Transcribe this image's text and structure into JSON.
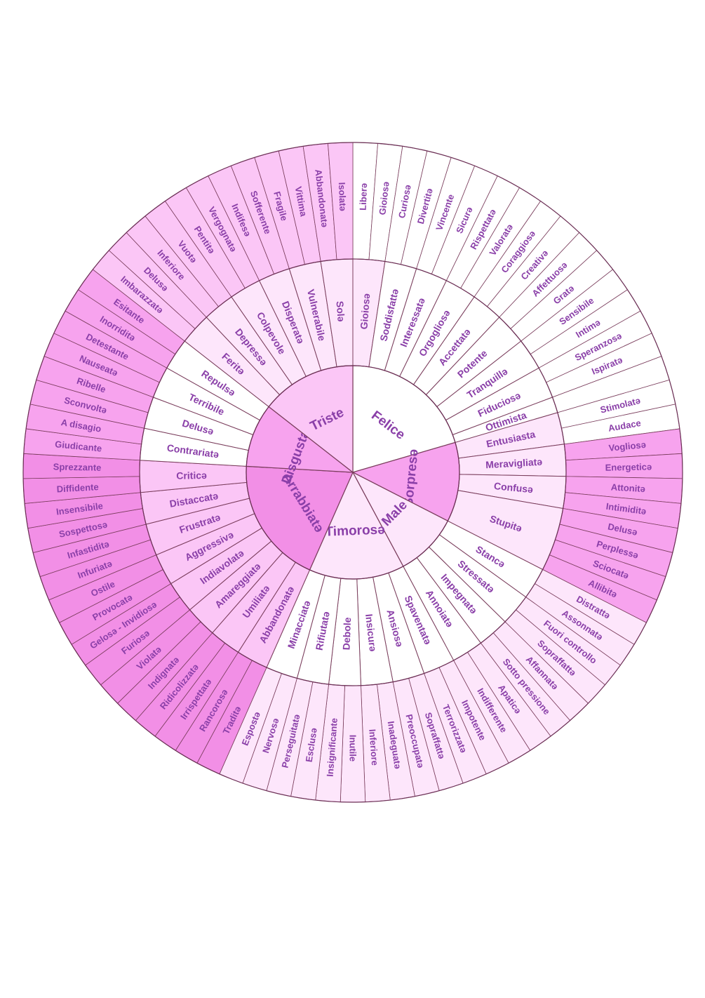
{
  "colors": {
    "white": "#ffffff",
    "pale": "#fde6fb",
    "light": "#fbc6f6",
    "mid": "#f7a3ee",
    "strong": "#f28fe6",
    "text": "#8a3fa8",
    "line": "#7a3d5c"
  },
  "emotions": [
    {
      "label": "Felice",
      "color": "white",
      "subs": [
        {
          "label": "Gioiosə",
          "color": "pale",
          "leaves": [
            {
              "label": "Liberə",
              "color": "white"
            },
            {
              "label": "Gioiosə",
              "color": "white"
            }
          ]
        },
        {
          "label": "Soddisfattə",
          "color": "white",
          "leaves": [
            {
              "label": "Curiosə",
              "color": "white"
            },
            {
              "label": "Divertitə",
              "color": "white"
            }
          ]
        },
        {
          "label": "Interessatə",
          "color": "white",
          "leaves": [
            {
              "label": "Vincente",
              "color": "white"
            },
            {
              "label": "Sicurə",
              "color": "white"
            }
          ]
        },
        {
          "label": "Orgogliosə",
          "color": "white",
          "leaves": [
            {
              "label": "Rispettatə",
              "color": "white"
            },
            {
              "label": "Valoratə",
              "color": "white"
            }
          ]
        },
        {
          "label": "Accettatə",
          "color": "white",
          "leaves": [
            {
              "label": "Coraggiosə",
              "color": "white"
            },
            {
              "label": "Creativə",
              "color": "white"
            }
          ]
        },
        {
          "label": "Potente",
          "color": "white",
          "leaves": [
            {
              "label": "Affettuosə",
              "color": "white"
            },
            {
              "label": "Gratə",
              "color": "white"
            }
          ]
        },
        {
          "label": "Tranquillə",
          "color": "white",
          "leaves": [
            {
              "label": "Sensibile",
              "color": "white"
            },
            {
              "label": "Intimə",
              "color": "white"
            }
          ]
        },
        {
          "label": "Fiduciosə",
          "color": "white",
          "leaves": [
            {
              "label": "Speranzosə",
              "color": "white"
            },
            {
              "label": "Ispiratə",
              "color": "white"
            }
          ]
        },
        {
          "label": "Ottimista",
          "color": "white",
          "leaves": []
        }
      ]
    },
    {
      "label": "Sorpresə",
      "color": "mid",
      "subs": [
        {
          "label": "Entusiasta",
          "color": "pale",
          "leaves": [
            {
              "label": "Stimolatə",
              "color": "white"
            },
            {
              "label": "Audace",
              "color": "white"
            }
          ]
        },
        {
          "label": "Meravigliatə",
          "color": "pale",
          "leaves": [
            {
              "label": "Vogliosə",
              "color": "mid"
            },
            {
              "label": "Energeticə",
              "color": "mid"
            }
          ]
        },
        {
          "label": "Confusə",
          "color": "pale",
          "leaves": [
            {
              "label": "Attonitə",
              "color": "mid"
            },
            {
              "label": "Intimiditə",
              "color": "mid"
            }
          ]
        },
        {
          "label": "Stupitə",
          "color": "pale",
          "leaves": [
            {
              "label": "Delusə",
              "color": "mid"
            },
            {
              "label": "Perplessə",
              "color": "mid"
            },
            {
              "label": "Sciocatə",
              "color": "mid"
            },
            {
              "label": "Allibitə",
              "color": "mid"
            }
          ]
        }
      ]
    },
    {
      "label": "Male",
      "color": "pale",
      "subs": [
        {
          "label": "Stancə",
          "color": "white",
          "leaves": [
            {
              "label": "Distrattə",
              "color": "pale"
            },
            {
              "label": "Assonnatə",
              "color": "pale"
            }
          ]
        },
        {
          "label": "Stressatə",
          "color": "white",
          "leaves": [
            {
              "label": "Fuori controllo",
              "color": "pale"
            },
            {
              "label": "Sopraffattə",
              "color": "pale"
            }
          ]
        },
        {
          "label": "Impegnatə",
          "color": "white",
          "leaves": [
            {
              "label": "Affannatə",
              "color": "pale"
            },
            {
              "label": "Sotto pressione",
              "color": "pale"
            }
          ]
        },
        {
          "label": "Annoiatə",
          "color": "white",
          "leaves": [
            {
              "label": "Apaticə",
              "color": "pale"
            },
            {
              "label": "Indifferente",
              "color": "pale"
            }
          ]
        }
      ]
    },
    {
      "label": "Timorosə",
      "color": "pale",
      "subs": [
        {
          "label": "Spaventatə",
          "color": "white",
          "leaves": [
            {
              "label": "Impotente",
              "color": "pale"
            },
            {
              "label": "Terrorizzatə",
              "color": "pale"
            }
          ]
        },
        {
          "label": "Ansiosə",
          "color": "white",
          "leaves": [
            {
              "label": "Sopraffattə",
              "color": "pale"
            },
            {
              "label": "Preoccupatə",
              "color": "pale"
            }
          ]
        },
        {
          "label": "Insicurə",
          "color": "white",
          "leaves": [
            {
              "label": "Inadeguatə",
              "color": "pale"
            },
            {
              "label": "Inferiore",
              "color": "pale"
            }
          ]
        },
        {
          "label": "Debole",
          "color": "white",
          "leaves": [
            {
              "label": "Inutile",
              "color": "pale"
            },
            {
              "label": "Insignificante",
              "color": "pale"
            }
          ]
        },
        {
          "label": "Rifiutatə",
          "color": "white",
          "leaves": [
            {
              "label": "Esclusə",
              "color": "pale"
            },
            {
              "label": "Perseguitatə",
              "color": "pale"
            }
          ]
        },
        {
          "label": "Minacciatə",
          "color": "white",
          "leaves": [
            {
              "label": "Nervosə",
              "color": "pale"
            },
            {
              "label": "Espostə",
              "color": "pale"
            }
          ]
        }
      ]
    },
    {
      "label": "Arrabbiatə",
      "color": "strong",
      "subs": [
        {
          "label": "Abbandonatə",
          "color": "light",
          "leaves": [
            {
              "label": "Traditə",
              "color": "strong"
            },
            {
              "label": "Rancorosə",
              "color": "strong"
            }
          ]
        },
        {
          "label": "Umiliatə",
          "color": "light",
          "leaves": [
            {
              "label": "Irrispettatə",
              "color": "strong"
            },
            {
              "label": "Ridicolizzatə",
              "color": "strong"
            }
          ]
        },
        {
          "label": "Amareggiatə",
          "color": "light",
          "leaves": [
            {
              "label": "Indignatə",
              "color": "strong"
            },
            {
              "label": "Violatə",
              "color": "strong"
            }
          ]
        },
        {
          "label": "Indiavolatə",
          "color": "light",
          "leaves": [
            {
              "label": "Furiosə",
              "color": "strong"
            },
            {
              "label": "Gelosə - Invidiosə",
              "color": "strong"
            }
          ]
        },
        {
          "label": "Aggressivə",
          "color": "light",
          "leaves": [
            {
              "label": "Provocatə",
              "color": "strong"
            },
            {
              "label": "Ostile",
              "color": "strong"
            }
          ]
        },
        {
          "label": "Frustratə",
          "color": "light",
          "leaves": [
            {
              "label": "Infuriatə",
              "color": "strong"
            },
            {
              "label": "Infastiditə",
              "color": "strong"
            }
          ]
        },
        {
          "label": "Distaccatə",
          "color": "light",
          "leaves": [
            {
              "label": "Sospettosə",
              "color": "strong"
            },
            {
              "label": "Insensibile",
              "color": "strong"
            }
          ]
        },
        {
          "label": "Criticə",
          "color": "light",
          "leaves": [
            {
              "label": "Diffidente",
              "color": "strong"
            },
            {
              "label": "Sprezzante",
              "color": "strong"
            }
          ]
        }
      ]
    },
    {
      "label": "Disgustatə",
      "color": "mid",
      "subs": [
        {
          "label": "Contrariatə",
          "color": "white",
          "leaves": [
            {
              "label": "Giudicante",
              "color": "mid"
            },
            {
              "label": "A disagio",
              "color": "mid"
            }
          ]
        },
        {
          "label": "Delusə",
          "color": "white",
          "leaves": [
            {
              "label": "Sconvoltə",
              "color": "mid"
            },
            {
              "label": "Ribelle",
              "color": "mid"
            }
          ]
        },
        {
          "label": "Terribile",
          "color": "white",
          "leaves": [
            {
              "label": "Nauseatə",
              "color": "mid"
            },
            {
              "label": "Detestante",
              "color": "mid"
            }
          ]
        },
        {
          "label": "Repulsə",
          "color": "white",
          "leaves": [
            {
              "label": "Inorriditə",
              "color": "mid"
            },
            {
              "label": "Esitante",
              "color": "mid"
            }
          ]
        }
      ]
    },
    {
      "label": "Triste",
      "color": "light",
      "subs": [
        {
          "label": "Feritə",
          "color": "pale",
          "leaves": [
            {
              "label": "Imbarazzatə",
              "color": "light"
            },
            {
              "label": "Delusə",
              "color": "light"
            }
          ]
        },
        {
          "label": "Depressə",
          "color": "pale",
          "leaves": [
            {
              "label": "Inferiore",
              "color": "light"
            },
            {
              "label": "Vuotə",
              "color": "light"
            }
          ]
        },
        {
          "label": "Colpevole",
          "color": "pale",
          "leaves": [
            {
              "label": "Pentitə",
              "color": "light"
            },
            {
              "label": "Vergognatə",
              "color": "light"
            }
          ]
        },
        {
          "label": "Disperatə",
          "color": "pale",
          "leaves": [
            {
              "label": "Indifesə",
              "color": "light"
            },
            {
              "label": "Sofferente",
              "color": "light"
            }
          ]
        },
        {
          "label": "Vulnerabile",
          "color": "pale",
          "leaves": [
            {
              "label": "Fragile",
              "color": "light"
            },
            {
              "label": "Vittima",
              "color": "light"
            }
          ]
        },
        {
          "label": "Solə",
          "color": "pale",
          "leaves": [
            {
              "label": "Abbandonatə",
              "color": "light"
            },
            {
              "label": "Isolatə",
              "color": "light"
            }
          ]
        }
      ]
    }
  ]
}
